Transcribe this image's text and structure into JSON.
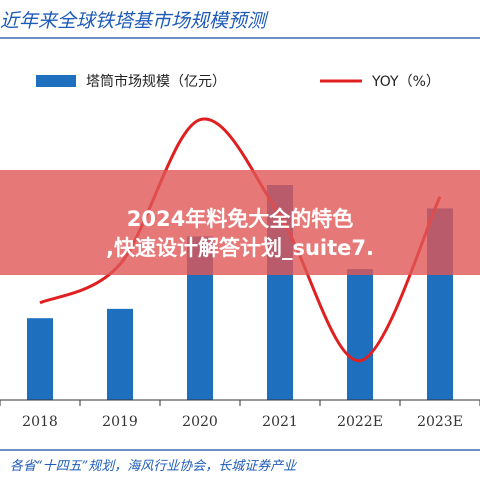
{
  "header": {
    "title": "近年来全球铁塔基市场规模预测"
  },
  "chart_data": {
    "type": "bar",
    "categories": [
      "2018",
      "2019",
      "2020",
      "2021",
      "2022E",
      "2023E"
    ],
    "series": [
      {
        "name": "塔筒市场规模（亿元）",
        "type": "bar",
        "color": "#1f6fbf",
        "values": [
          350,
          390,
          700,
          920,
          560,
          820
        ]
      },
      {
        "name": "YOY（%）",
        "type": "line",
        "color": "#e02020",
        "values": [
          -10,
          10,
          85,
          35,
          -40,
          45
        ]
      }
    ],
    "legend": "top"
  },
  "footer": {
    "source": "各省“十四五”规划，海风行业协会，长城证券产业"
  },
  "banner": {
    "line1": "2024年​料免​大全​​的特色",
    "line2": ",快速设计解答计划_suite7."
  }
}
